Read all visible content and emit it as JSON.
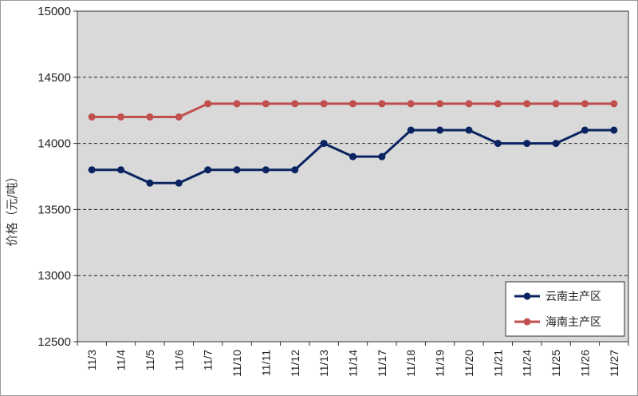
{
  "chart_data": {
    "type": "line",
    "title": "",
    "xlabel": "",
    "ylabel": "价格（元/吨）",
    "ylim": [
      12500,
      15000
    ],
    "yticks": [
      12500,
      13000,
      13500,
      14000,
      14500,
      15000
    ],
    "categories": [
      "11/3",
      "11/4",
      "11/5",
      "11/6",
      "11/7",
      "11/10",
      "11/11",
      "11/12",
      "11/13",
      "11/14",
      "11/17",
      "11/18",
      "11/19",
      "11/20",
      "11/21",
      "11/24",
      "11/25",
      "11/26",
      "11/27"
    ],
    "series": [
      {
        "name": "云南主产区",
        "color": "#0b2461",
        "values": [
          13800,
          13800,
          13700,
          13700,
          13800,
          13800,
          13800,
          13800,
          14000,
          13900,
          13900,
          14100,
          14100,
          14100,
          14000,
          14000,
          14000,
          14100,
          14100
        ]
      },
      {
        "name": "海南主产区",
        "color": "#c0504d",
        "values": [
          14200,
          14200,
          14200,
          14200,
          14300,
          14300,
          14300,
          14300,
          14300,
          14300,
          14300,
          14300,
          14300,
          14300,
          14300,
          14300,
          14300,
          14300,
          14300
        ]
      }
    ],
    "grid": true,
    "legend": "bottom-right"
  }
}
